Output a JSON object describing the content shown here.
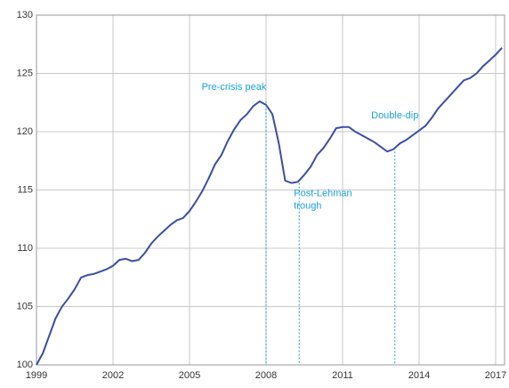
{
  "chart_data": {
    "type": "line",
    "x": [
      1999.0,
      1999.25,
      1999.5,
      1999.75,
      2000.0,
      2000.25,
      2000.5,
      2000.75,
      2001.0,
      2001.25,
      2001.5,
      2001.75,
      2002.0,
      2002.25,
      2002.5,
      2002.75,
      2003.0,
      2003.25,
      2003.5,
      2003.75,
      2004.0,
      2004.25,
      2004.5,
      2004.75,
      2005.0,
      2005.25,
      2005.5,
      2005.75,
      2006.0,
      2006.25,
      2006.5,
      2006.75,
      2007.0,
      2007.25,
      2007.5,
      2007.75,
      2008.0,
      2008.25,
      2008.5,
      2008.75,
      2009.0,
      2009.25,
      2009.5,
      2009.75,
      2010.0,
      2010.25,
      2010.5,
      2010.75,
      2011.0,
      2011.25,
      2011.5,
      2011.75,
      2012.0,
      2012.25,
      2012.5,
      2012.75,
      2013.0,
      2013.25,
      2013.5,
      2013.75,
      2014.0,
      2014.25,
      2014.5,
      2014.75,
      2015.0,
      2015.25,
      2015.5,
      2015.75,
      2016.0,
      2016.25,
      2016.5,
      2016.75,
      2017.0,
      2017.25
    ],
    "series": [
      {
        "color": "#3a4fa0",
        "values": [
          100,
          101,
          102.5,
          104,
          105,
          105.7,
          106.5,
          107.5,
          107.7,
          107.8,
          108,
          108.2,
          108.5,
          109,
          109.1,
          108.9,
          109,
          109.6,
          110.4,
          111,
          111.5,
          112,
          112.4,
          112.6,
          113.2,
          114,
          114.9,
          116,
          117.2,
          118,
          119.2,
          120.2,
          121,
          121.5,
          122.2,
          122.6,
          122.3,
          121.5,
          119,
          115.8,
          115.6,
          115.7,
          116.3,
          117,
          118,
          118.6,
          119.4,
          120.3,
          120.4,
          120.4,
          120,
          119.7,
          119.4,
          119.1,
          118.7,
          118.3,
          118.5,
          119,
          119.3,
          119.7,
          120.1,
          120.5,
          121.2,
          122,
          122.6,
          123.2,
          123.8,
          124.4,
          124.6,
          125,
          125.6,
          126.1,
          126.6,
          127.2
        ]
      }
    ],
    "xlim": [
      1999,
      2017.35
    ],
    "xticks": [
      1999,
      2002,
      2005,
      2008,
      2011,
      2014,
      2017
    ],
    "ylim": [
      100,
      130
    ],
    "yticks": [
      100,
      105,
      110,
      115,
      120,
      125,
      130
    ],
    "grid": true,
    "annotations": [
      {
        "lines": [
          "Pre-crisis peak"
        ],
        "x": 2008,
        "y": 122.6
      },
      {
        "lines": [
          "Post-Lehman",
          "trough"
        ],
        "x": 2009.3,
        "y": 115.6
      },
      {
        "lines": [
          "Double-dip"
        ],
        "x": 2013.05,
        "y": 118.3
      }
    ],
    "annotation_color": "#1aa3d8"
  }
}
